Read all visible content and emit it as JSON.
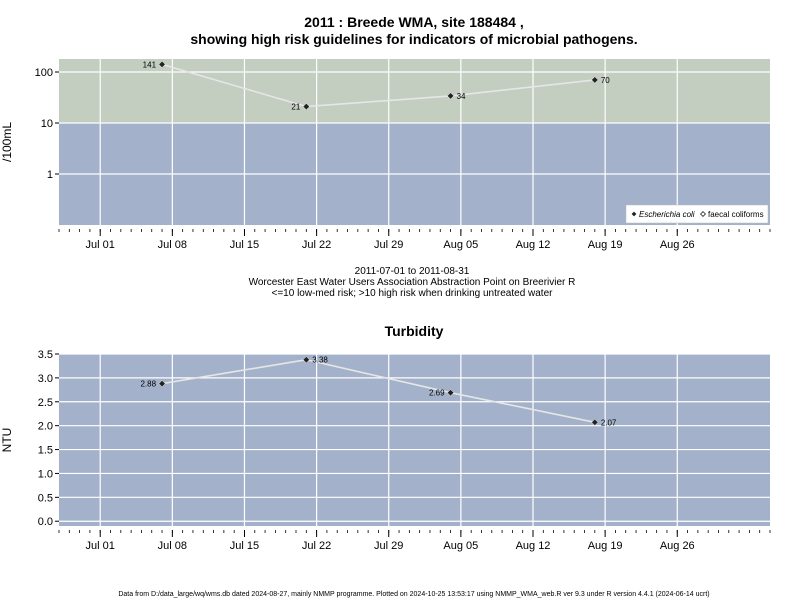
{
  "chart_data": [
    {
      "type": "line",
      "title_line1": "2011 : Breede WMA, site 188484 ,",
      "title_line2": "showing high risk guidelines for indicators of microbial pathogens.",
      "ylabel": "/100mL",
      "yscale": "log",
      "ylim": [
        0.1,
        180
      ],
      "xlim": [
        "2011-06-27",
        "2011-09-04"
      ],
      "x_ticks": [
        "Jul 01",
        "Jul 08",
        "Jul 15",
        "Jul 22",
        "Jul 29",
        "Aug 05",
        "Aug 12",
        "Aug 19",
        "Aug 26"
      ],
      "x_tick_dates": [
        "2011-07-01",
        "2011-07-08",
        "2011-07-15",
        "2011-07-22",
        "2011-07-29",
        "2011-08-05",
        "2011-08-12",
        "2011-08-19",
        "2011-08-26"
      ],
      "y_ticks": [
        1,
        10,
        100
      ],
      "y_tick_labels": [
        "1",
        "10",
        "100"
      ],
      "threshold": 10,
      "threshold_colors": {
        "high": "#c3cdc0",
        "low": "#a3b2ca"
      },
      "grid": true,
      "legend_position": "bottom-right",
      "series": [
        {
          "name": "Escherichia coli",
          "marker": "filled-diamond",
          "x": [
            "2011-07-07",
            "2011-07-21",
            "2011-08-04",
            "2011-08-18"
          ],
          "values": [
            141,
            21,
            34,
            70
          ],
          "labels": [
            "141",
            "21",
            "34",
            "70"
          ]
        },
        {
          "name": "faecal coliforms",
          "marker": "open-diamond",
          "x": [],
          "values": []
        }
      ]
    },
    {
      "type": "line",
      "title": "Turbidity",
      "ylabel": "NTU",
      "ylim": [
        -0.1,
        3.5
      ],
      "xlim": [
        "2011-06-27",
        "2011-09-04"
      ],
      "x_ticks": [
        "Jul 01",
        "Jul 08",
        "Jul 15",
        "Jul 22",
        "Jul 29",
        "Aug 05",
        "Aug 12",
        "Aug 19",
        "Aug 26"
      ],
      "x_tick_dates": [
        "2011-07-01",
        "2011-07-08",
        "2011-07-15",
        "2011-07-22",
        "2011-07-29",
        "2011-08-05",
        "2011-08-12",
        "2011-08-19",
        "2011-08-26"
      ],
      "y_ticks": [
        0,
        0.5,
        1,
        1.5,
        2,
        2.5,
        3,
        3.5
      ],
      "y_tick_labels": [
        "0.0",
        "0.5",
        "1.0",
        "1.5",
        "2.0",
        "2.5",
        "3.0",
        "3.5"
      ],
      "background": "#a3b2ca",
      "grid": true,
      "series": [
        {
          "x": [
            "2011-07-07",
            "2011-07-21",
            "2011-08-04",
            "2011-08-18"
          ],
          "values": [
            2.88,
            3.38,
            2.69,
            2.07
          ],
          "labels": [
            "2.88",
            "3.38",
            "2.69",
            "2.07"
          ]
        }
      ]
    }
  ],
  "subtitle": {
    "line1": "2011-07-01 to 2011-08-31",
    "line2": "Worcester East Water Users Association Abstraction Point on Breerivier R",
    "line3": "<=10 low-med risk; >10 high risk when drinking untreated water"
  },
  "footer": "Data from D:/data_large/wq/wms.db dated 2024-08-27, mainly NMMP programme. Plotted on 2024-10-25 13:53:17 using NMMP_WMA_web.R ver 9.3 under R version 4.4.1 (2024-06-14 ucrt)"
}
